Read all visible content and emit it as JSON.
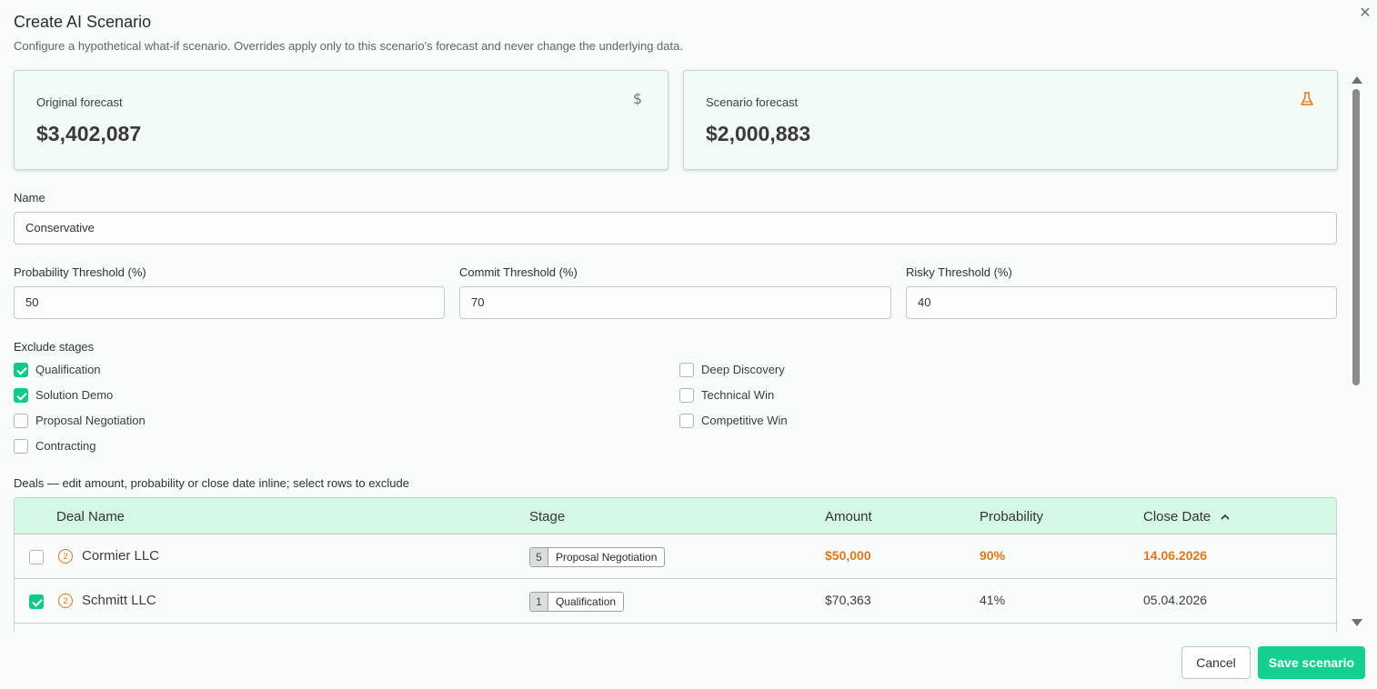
{
  "dialog": {
    "title": "Create AI Scenario",
    "subtitle": "Configure a hypothetical what-if scenario. Overrides apply only to this scenario's forecast and never change the underlying data.",
    "close_icon": "close-icon"
  },
  "cards": {
    "original": {
      "label": "Original forecast",
      "value": "$3,402,087",
      "icon": "dollar-icon"
    },
    "scenario": {
      "label": "Scenario forecast",
      "value": "$2,000,883",
      "icon": "flask-icon"
    }
  },
  "form": {
    "name_label": "Name",
    "name_value": "Conservative",
    "probability_label": "Probability Threshold (%)",
    "probability_value": "50",
    "commit_label": "Commit Threshold (%)",
    "commit_value": "70",
    "risky_label": "Risky Threshold (%)",
    "risky_value": "40"
  },
  "stages": {
    "label": "Exclude stages",
    "items": [
      {
        "label": "Qualification",
        "checked": true
      },
      {
        "label": "Solution Demo",
        "checked": true
      },
      {
        "label": "Proposal Negotiation",
        "checked": false
      },
      {
        "label": "Contracting",
        "checked": false
      },
      {
        "label": "Deep Discovery",
        "checked": false
      },
      {
        "label": "Technical Win",
        "checked": false
      },
      {
        "label": "Competitive Win",
        "checked": false
      }
    ]
  },
  "deals": {
    "label": "Deals — edit amount, probability or close date inline; select rows to exclude",
    "columns": [
      "Deal Name",
      "Stage",
      "Amount",
      "Probability",
      "Close Date"
    ],
    "sort_icon": "chevron-up-icon",
    "rows": [
      {
        "selected": false,
        "priority": "2",
        "name": "Cormier LLC",
        "stage_num": "5",
        "stage": "Proposal Negotiation",
        "amount": "$50,000",
        "probability": "90%",
        "close_date": "14.06.2026",
        "highlight": true
      },
      {
        "selected": true,
        "priority": "2",
        "name": "Schmitt LLC",
        "stage_num": "1",
        "stage": "Qualification",
        "amount": "$70,363",
        "probability": "41%",
        "close_date": "05.04.2026",
        "highlight": false
      }
    ]
  },
  "footer": {
    "cancel_label": "Cancel",
    "save_label": "Save scenario"
  },
  "colors": {
    "accent": "#14cf90",
    "warning": "#e07718",
    "table_header": "#d4f7e6"
  }
}
